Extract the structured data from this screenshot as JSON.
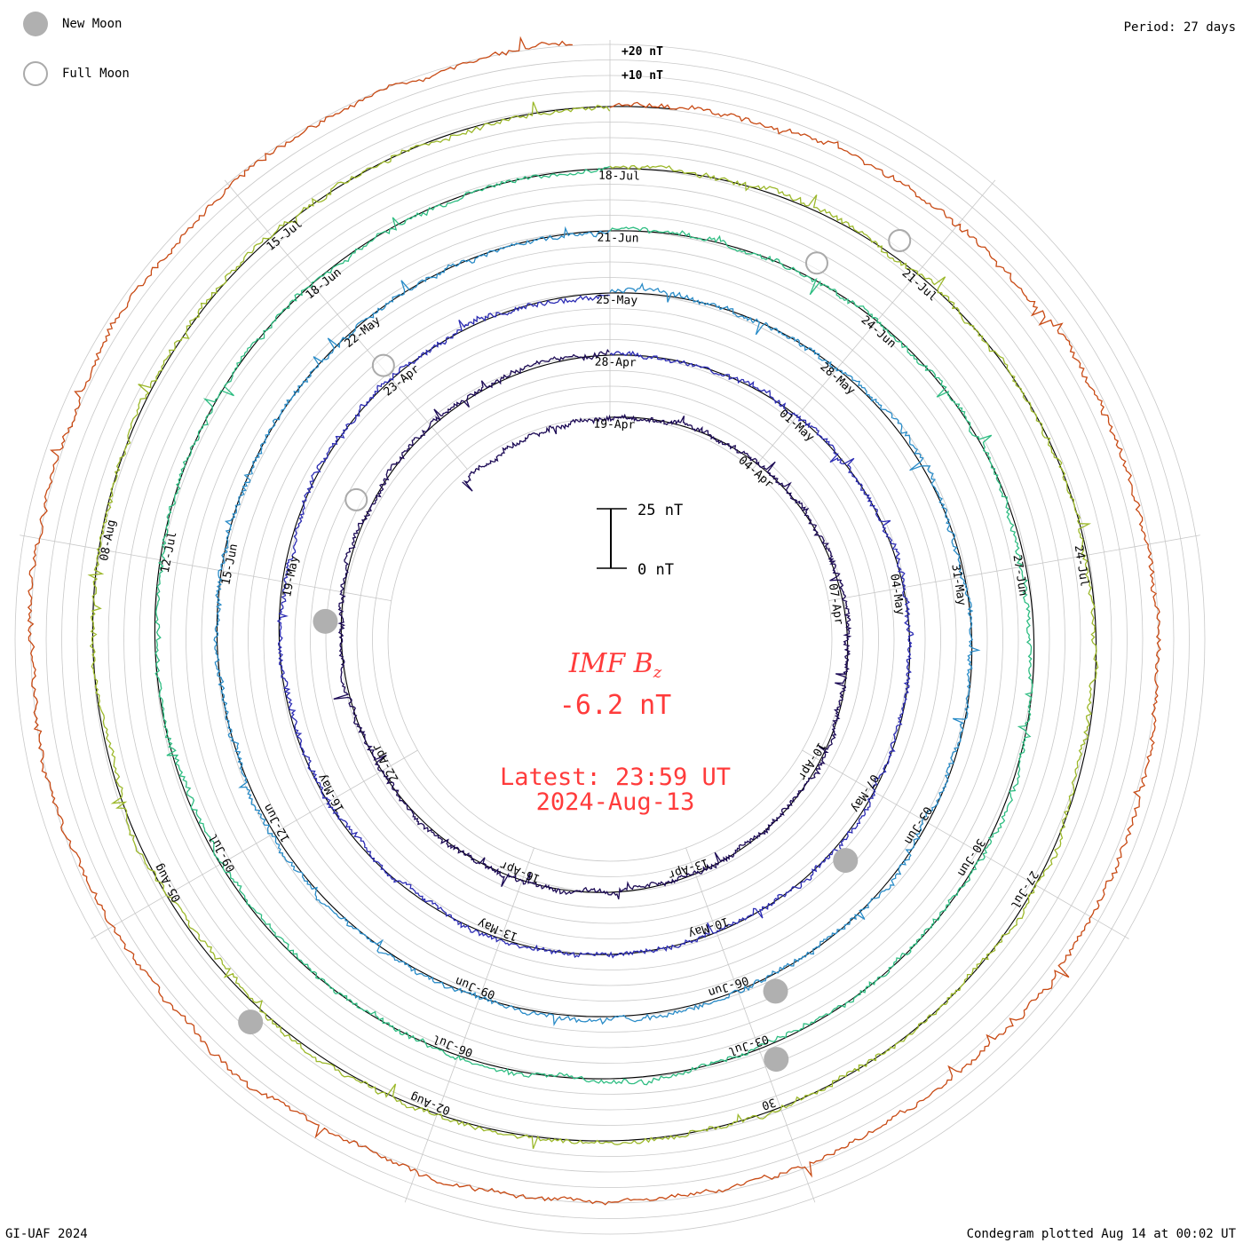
{
  "legend": {
    "new_moon": "New Moon",
    "full_moon": "Full Moon",
    "new_moon_color": "#b0b0b0",
    "full_moon_color": "#aaaaaa"
  },
  "header": {
    "period": "Period: 27 days"
  },
  "footer": {
    "credit": "GI-UAF 2024",
    "plotted": "Condegram plotted Aug 14 at 00:02 UT"
  },
  "center": {
    "title_main": "IMF B",
    "title_sub": "z",
    "latest_value": "-6.2 nT",
    "latest_time": "Latest: 23:59 UT",
    "latest_date": "2024-Aug-13",
    "accent_color": "#ff3b3b"
  },
  "chart_data": {
    "type": "condegram",
    "title": "IMF Bz",
    "units": "nT",
    "period_days": 27,
    "scale_bar": {
      "top_label": "25 nT",
      "bottom_label": "0 nT",
      "span_nT": 25
    },
    "outer_scale_labels": [
      "+20 nT",
      "+10 nT"
    ],
    "turns": [
      {
        "name": "turn-1",
        "color": "#1c0a55",
        "date_labels": [
          "19-Apr",
          "04-Apr",
          "07-Apr",
          "10-Apr",
          "13-Apr",
          "16-Apr",
          "22-Apr"
        ]
      },
      {
        "name": "turn-2",
        "color": "#2c2cb4",
        "date_labels": [
          "28-Apr",
          "01-May",
          "04-May",
          "07-May",
          "10-May",
          "13-May",
          "16-May",
          "19-May",
          "23-Apr"
        ]
      },
      {
        "name": "turn-3",
        "color": "#2a8cc8",
        "date_labels": [
          "25-May",
          "28-May",
          "31-May",
          "03-Jun",
          "06-Jun",
          "09-Jun",
          "12-Jun",
          "15-Jun",
          "22-May"
        ]
      },
      {
        "name": "turn-4",
        "color": "#2ebd82",
        "date_labels": [
          "21-Jun",
          "24-Jun",
          "27-Jun",
          "30-Jun",
          "03-Jul",
          "06-Jul",
          "09-Jul",
          "12-Jul",
          "18-Jun"
        ]
      },
      {
        "name": "turn-5",
        "color": "#9cb82a",
        "date_labels": [
          "18-Jul",
          "21-Jul",
          "24-Jul",
          "27-Jul",
          "30",
          "02-Aug",
          "05-Aug",
          "08-Aug",
          "15-Jul"
        ]
      },
      {
        "name": "turn-6",
        "color": "#c84a14",
        "date_labels": []
      }
    ],
    "moon_phases": {
      "new_moon_dates": [
        "08-Apr",
        "08-May",
        "06-Jun",
        "06-Jul",
        "04-Aug"
      ],
      "full_moon_dates": [
        "23-Apr",
        "23-May",
        "22-Jun",
        "21-Jul"
      ]
    }
  }
}
